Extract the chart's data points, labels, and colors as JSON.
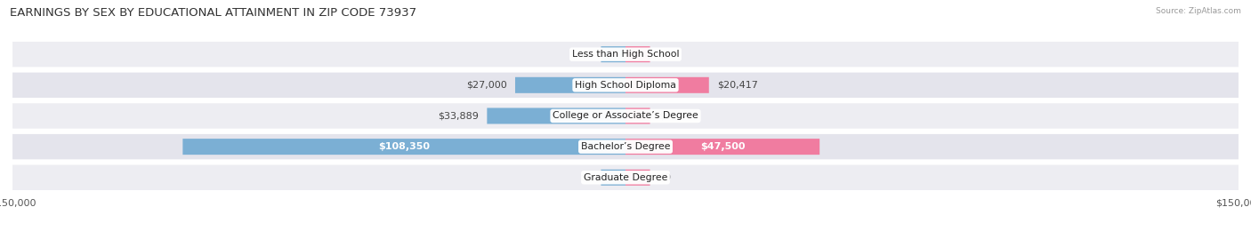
{
  "title": "EARNINGS BY SEX BY EDUCATIONAL ATTAINMENT IN ZIP CODE 73937",
  "source": "Source: ZipAtlas.com",
  "categories": [
    "Less than High School",
    "High School Diploma",
    "College or Associate’s Degree",
    "Bachelor’s Degree",
    "Graduate Degree"
  ],
  "male_values": [
    0,
    27000,
    33889,
    108350,
    0
  ],
  "female_values": [
    0,
    20417,
    0,
    47500,
    0
  ],
  "max_value": 150000,
  "stub_value": 6000,
  "male_color": "#7BAFD4",
  "female_color": "#F07CA0",
  "row_bg_colors": [
    "#EDEDF2",
    "#E4E4EC",
    "#EDEDF2",
    "#E4E4EC",
    "#EDEDF2"
  ],
  "title_fontsize": 9.5,
  "label_fontsize": 8,
  "axis_label_fontsize": 8,
  "background_color": "#ffffff"
}
